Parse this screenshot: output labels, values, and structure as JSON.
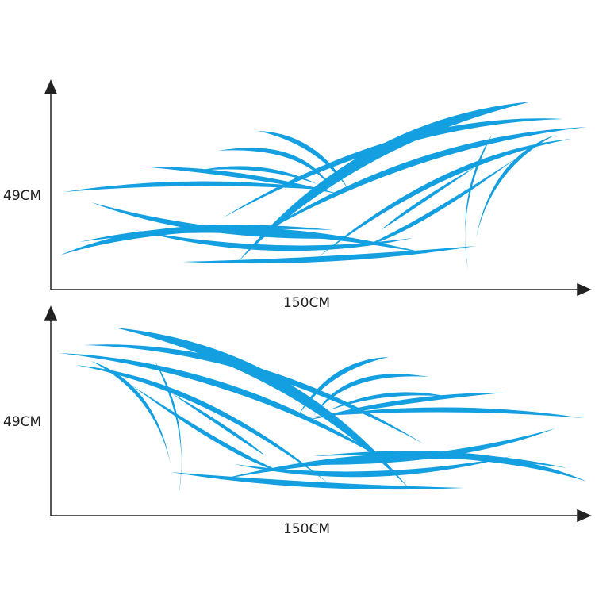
{
  "decal_color": "#139fe0",
  "panels": [
    {
      "height_label": "49CM",
      "width_label": "150CM",
      "orientation": "wave-right"
    },
    {
      "height_label": "49CM",
      "width_label": "150CM",
      "orientation": "wave-left"
    }
  ]
}
